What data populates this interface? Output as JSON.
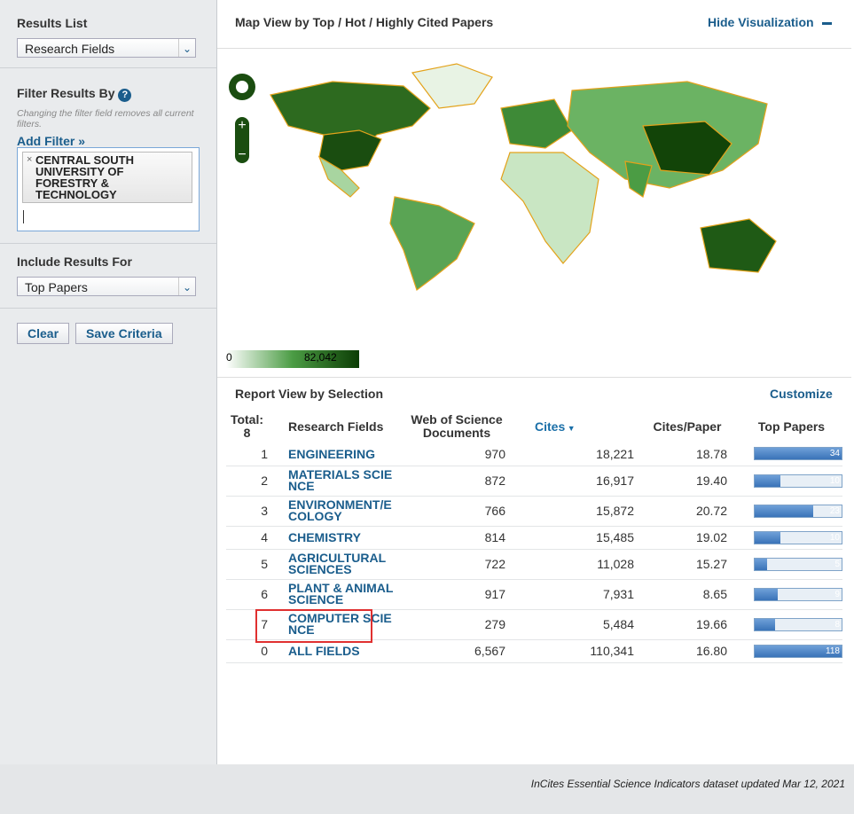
{
  "sidebar": {
    "results_list": {
      "label": "Results List",
      "value": "Research Fields"
    },
    "filter": {
      "label": "Filter Results By",
      "help": "?",
      "note": "Changing the filter field removes all current filters.",
      "add": "Add Filter »",
      "tag": "CENTRAL SOUTH UNIVERSITY OF FORESTRY & TECHNOLOGY"
    },
    "include": {
      "label": "Include Results For",
      "value": "Top Papers"
    },
    "buttons": [
      "Clear",
      "Save Criteria"
    ]
  },
  "map": {
    "title": "Map View by Top / Hot / Highly Cited Papers",
    "hide": "Hide Visualization",
    "legend_min": "0",
    "legend_max": "82,042"
  },
  "report": {
    "title": "Report View by Selection",
    "customize": "Customize",
    "total_label": "Total:",
    "total": 8,
    "columns": [
      "Research Fields",
      "Web of Science Documents",
      "Cites",
      "Cites/Paper",
      "Top Papers"
    ],
    "rows": [
      {
        "rank": 1,
        "field": "ENGINEERING",
        "documents": "970",
        "cites": "18,221",
        "cites_per_paper": "18.78",
        "top_papers": 34
      },
      {
        "rank": 2,
        "field": "MATERIALS SCIENCE",
        "documents": "872",
        "cites": "16,917",
        "cites_per_paper": "19.40",
        "top_papers": 10
      },
      {
        "rank": 3,
        "field": "ENVIRONMENT/ECOLOGY",
        "documents": "766",
        "cites": "15,872",
        "cites_per_paper": "20.72",
        "top_papers": 23
      },
      {
        "rank": 4,
        "field": "CHEMISTRY",
        "documents": "814",
        "cites": "15,485",
        "cites_per_paper": "19.02",
        "top_papers": 10
      },
      {
        "rank": 5,
        "field": "AGRICULTURAL SCIENCES",
        "documents": "722",
        "cites": "11,028",
        "cites_per_paper": "15.27",
        "top_papers": 5
      },
      {
        "rank": 6,
        "field": "PLANT & ANIMAL SCIENCE",
        "documents": "917",
        "cites": "7,931",
        "cites_per_paper": "8.65",
        "top_papers": 9
      },
      {
        "rank": 7,
        "field": "COMPUTER SCIENCE",
        "documents": "279",
        "cites": "5,484",
        "cites_per_paper": "19.66",
        "top_papers": 8
      },
      {
        "rank": 0,
        "field": "ALL FIELDS",
        "documents": "6,567",
        "cites": "110,341",
        "cites_per_paper": "16.80",
        "top_papers": 118
      }
    ]
  },
  "footer": {
    "text": "InCites Essential Science Indicators dataset updated Mar 12, 2021"
  }
}
